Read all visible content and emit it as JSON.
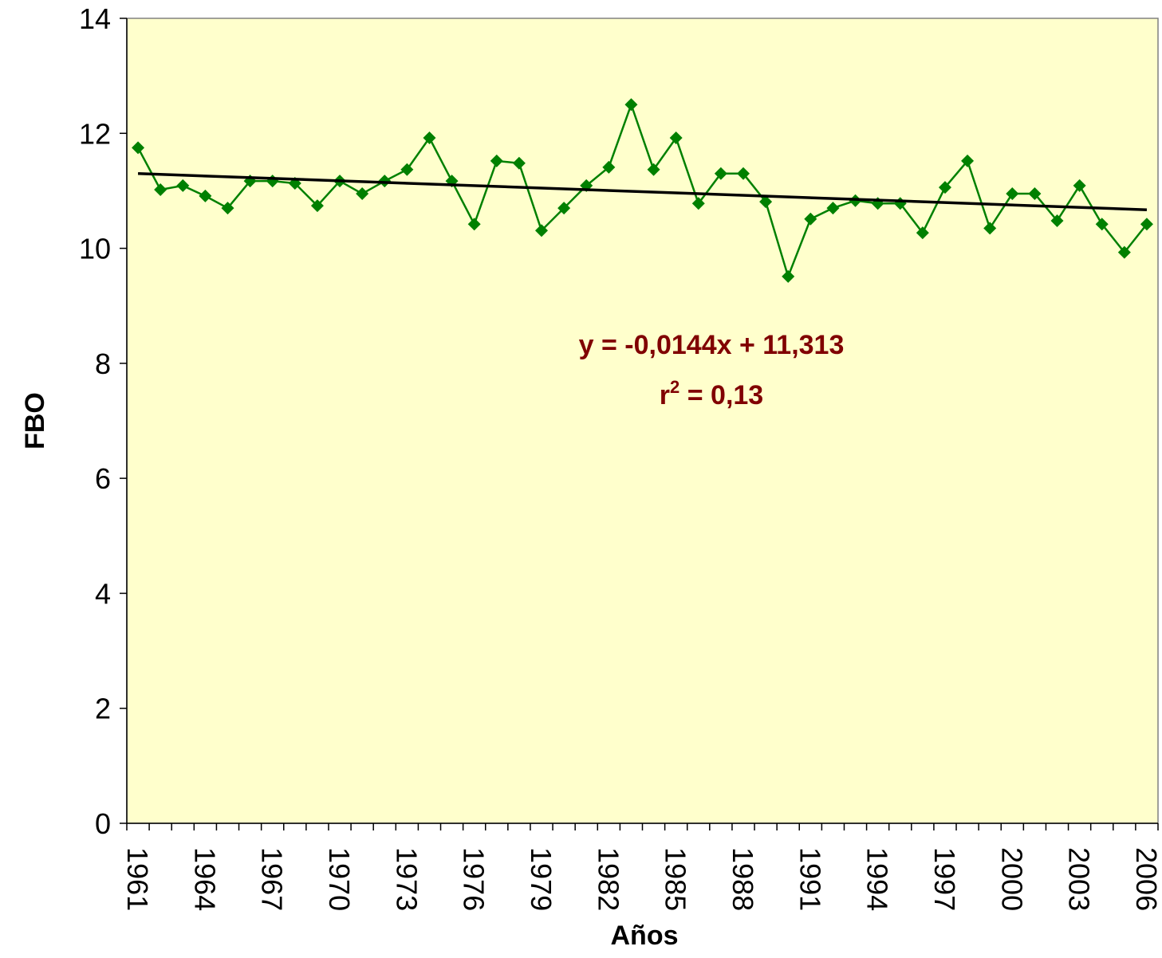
{
  "chart_data": {
    "type": "line",
    "x_label": "Años",
    "y_label": "FBO",
    "categories": [
      "1961",
      null,
      null,
      "1964",
      null,
      null,
      "1967",
      null,
      null,
      "1970",
      null,
      null,
      "1973",
      null,
      null,
      "1976",
      null,
      null,
      "1979",
      null,
      null,
      "1982",
      null,
      null,
      "1985",
      null,
      null,
      "1988",
      null,
      null,
      "1991",
      null,
      null,
      "1994",
      null,
      null,
      "1997",
      null,
      null,
      "2000",
      null,
      null,
      "2003",
      null,
      null,
      "2006"
    ],
    "series": [
      {
        "color": "#008000",
        "values": [
          11.75,
          11.02,
          11.09,
          10.91,
          10.7,
          11.17,
          11.17,
          11.13,
          10.74,
          11.17,
          10.95,
          11.17,
          11.37,
          11.92,
          11.17,
          10.42,
          11.52,
          11.48,
          10.31,
          10.7,
          11.09,
          11.41,
          12.5,
          11.37,
          11.92,
          10.78,
          11.3,
          11.3,
          10.81,
          9.51,
          10.51,
          10.7,
          10.83,
          10.78,
          10.78,
          10.27,
          11.06,
          11.52,
          10.35,
          10.95,
          10.95,
          10.48,
          11.09,
          10.42,
          9.93,
          10.42
        ]
      }
    ],
    "trendline": {
      "color": "#000000",
      "values": [
        11.3,
        10.67
      ]
    },
    "equation": "y = -0,0144x + 11,313",
    "r2": {
      "base": "r",
      "sup": "2",
      "rest": " = 0,13"
    },
    "background": "#ffffcc",
    "ylim": [
      0,
      14
    ],
    "yticks": [
      0,
      2,
      4,
      6,
      8,
      10,
      12,
      14
    ]
  }
}
